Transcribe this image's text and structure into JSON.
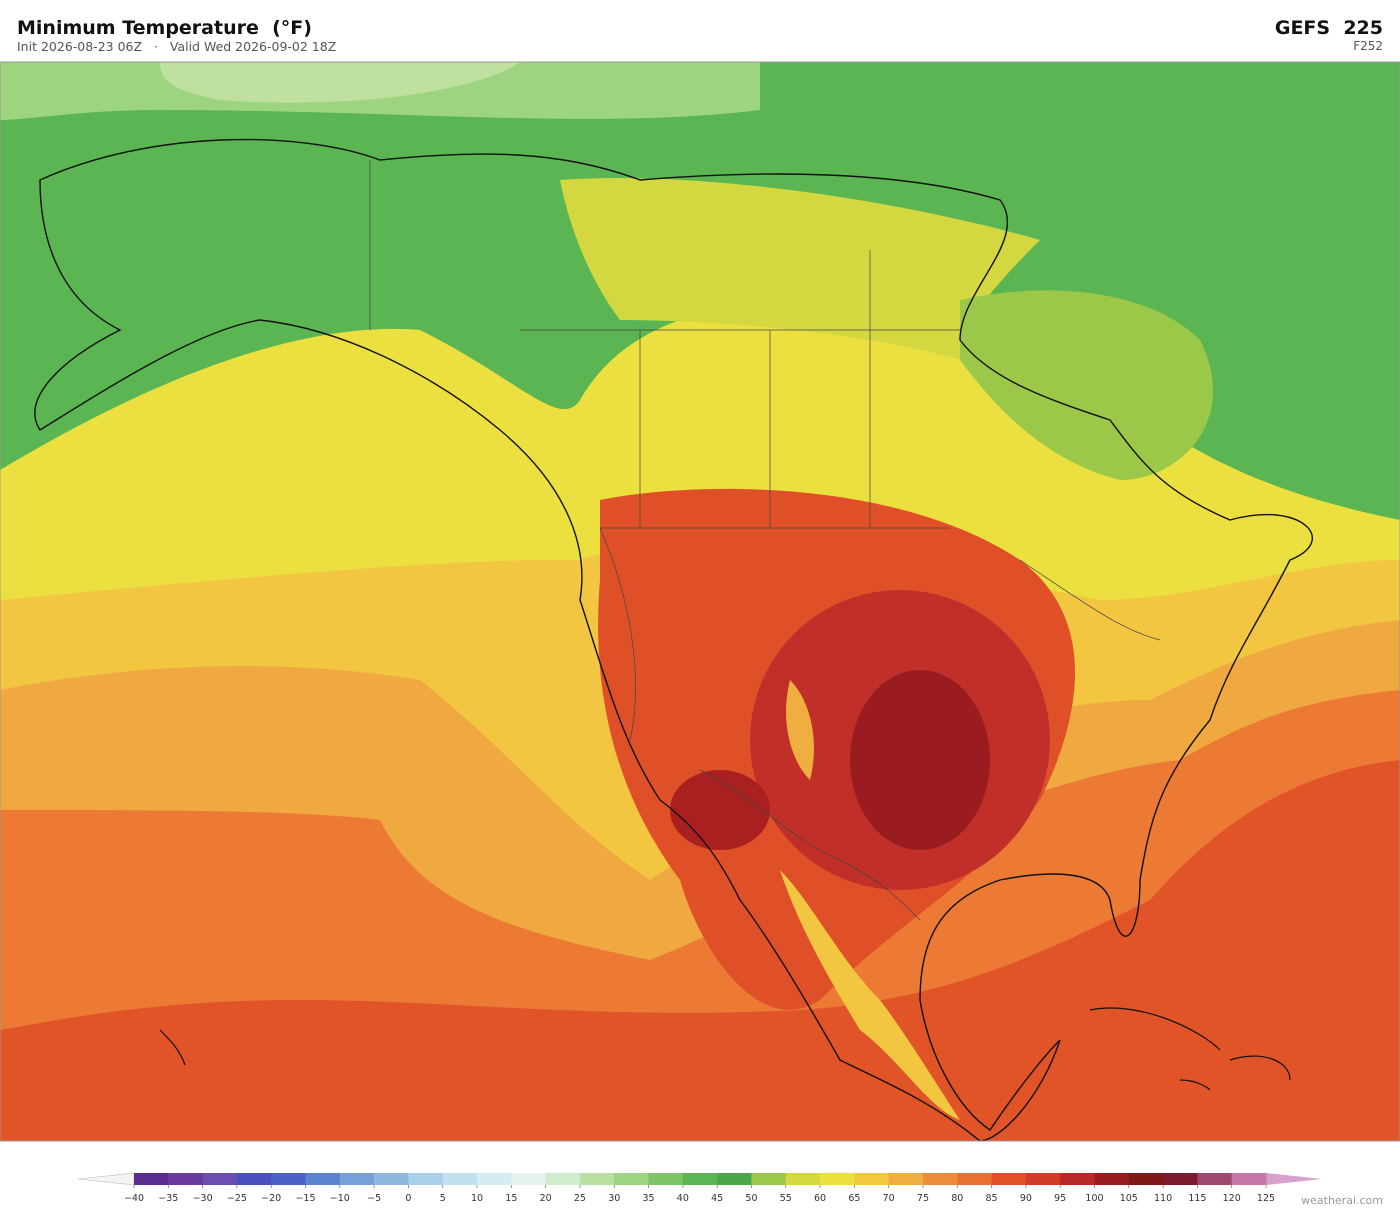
{
  "header": {
    "title": "Minimum Temperature  (°F)",
    "subtitle": "Init 2026-08-23 06Z   ·   Valid Wed 2026-09-02 18Z",
    "model": "GEFS  225",
    "forecast_hour": "F252"
  },
  "colorbar": {
    "ticks": [
      {
        "value": -40,
        "label": "−40"
      },
      {
        "value": -35,
        "label": "−35"
      },
      {
        "value": -30,
        "label": "−30"
      },
      {
        "value": -25,
        "label": "−25"
      },
      {
        "value": -20,
        "label": "−20"
      },
      {
        "value": -15,
        "label": "−15"
      },
      {
        "value": -10,
        "label": "−10"
      },
      {
        "value": -5,
        "label": "−5"
      },
      0,
      5,
      10,
      15,
      20,
      25,
      30,
      35,
      40,
      45,
      50,
      55,
      60,
      65,
      70,
      75,
      80,
      85,
      90,
      95,
      100,
      105,
      110,
      115,
      120,
      125
    ],
    "colors": [
      "#5b2c8f",
      "#6a3a9e",
      "#6a4fb0",
      "#4a4fc0",
      "#4a62c8",
      "#5b82d0",
      "#78a0d8",
      "#8fb8e0",
      "#a8d0ea",
      "#c0e0f0",
      "#d5ecf2",
      "#e4f3ec",
      "#d0eccc",
      "#b8e0a0",
      "#9cd47f",
      "#7cc466",
      "#5ab552",
      "#4aa84a",
      "#9cc84a",
      "#d4d840",
      "#ece040",
      "#f2c840",
      "#f0ae40",
      "#ec8c38",
      "#e87030",
      "#e05028",
      "#d03c28",
      "#b82828",
      "#9a1c20",
      "#801818",
      "#7c1a30",
      "#a04870",
      "#c878a8"
    ],
    "under_color": "#f4f4f4",
    "over_color": "#d8a0cc"
  },
  "footer": {
    "credit": "weatherai.com"
  }
}
